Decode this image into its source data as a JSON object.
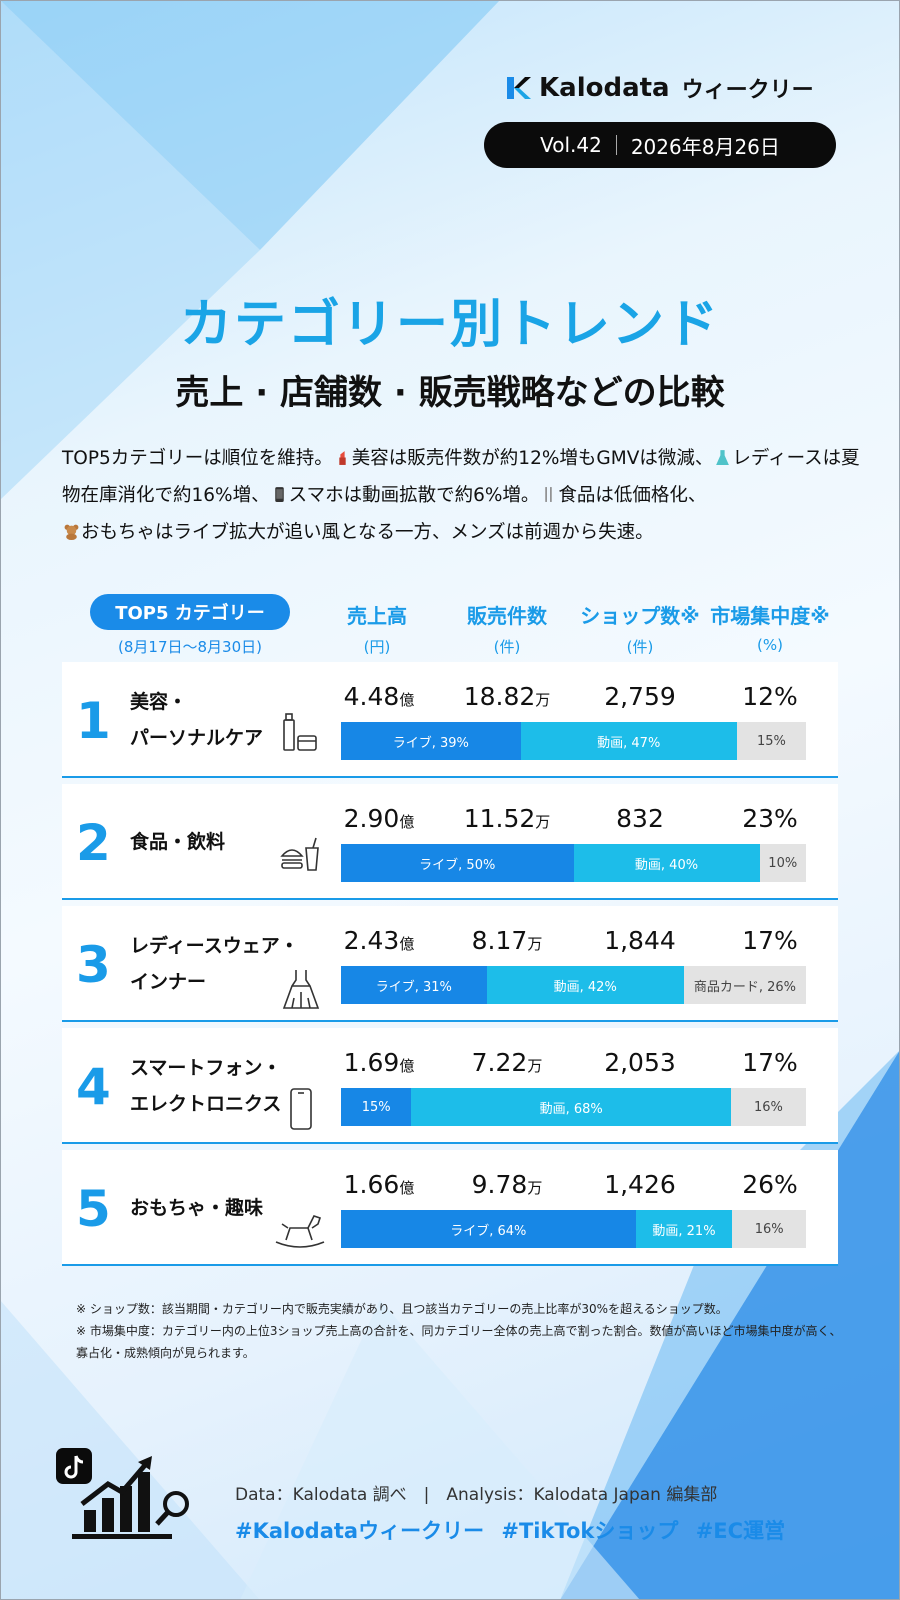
{
  "header": {
    "brand_name": "Kalodata",
    "brand_sub": "ウィークリー",
    "volume": "Vol.42",
    "date": "2026年8月26日",
    "accent_color": "#1aa4e6"
  },
  "title": "カテゴリー別トレンド",
  "subtitle": "売上 · 店舗数 · 販売戦略などの比較",
  "summary": {
    "s1": "TOP5カテゴリーは順位を維持。",
    "s2": "美容は販売件数が約12%増もGMVは微減、",
    "s3": "レディースは夏物在庫消化で約16%増、",
    "s4": "スマホは動画拡散で約6%増。",
    "s5": "食品は低価格化、",
    "s6": "おもちゃはライブ拡大が追い風となる一方、メンズは前週から失速。",
    "icons": [
      "lipstick-icon",
      "dress-icon",
      "smartphone-icon",
      "cutlery-icon",
      "teddy-bear-icon"
    ]
  },
  "table": {
    "tab_label": "TOP5 カテゴリー",
    "period": "(8月17日～8月30日)",
    "columns": [
      {
        "label": "売上高",
        "unit": "(円)"
      },
      {
        "label": "販売件数",
        "unit": "(件)"
      },
      {
        "label": "ショップ数※",
        "unit": "(件)"
      },
      {
        "label": "市場集中度※",
        "unit": "(%)"
      }
    ],
    "rows": [
      {
        "rank": "1",
        "line1": "美容・",
        "line2": "パーソナルケア",
        "icon": "cosmetics-icon",
        "sales": "4.48",
        "sales_unit": "億",
        "count": "18.82",
        "count_unit": "万",
        "shops": "2,759",
        "conc": "12%",
        "live_share": 39,
        "video_share": 47,
        "other_share": 15,
        "live_label": "ライブ, 39%",
        "video_label": "動画, 47%",
        "other_label": "15%"
      },
      {
        "rank": "2",
        "line1": "食品・飲料",
        "line2": "",
        "icon": "burger-drink-icon",
        "sales": "2.90",
        "sales_unit": "億",
        "count": "11.52",
        "count_unit": "万",
        "shops": "832",
        "conc": "23%",
        "live_share": 50,
        "video_share": 40,
        "other_share": 10,
        "live_label": "ライブ, 50%",
        "video_label": "動画, 40%",
        "other_label": "10%"
      },
      {
        "rank": "3",
        "line1": "レディースウェア・",
        "line2": "インナー",
        "icon": "dress-icon",
        "sales": "2.43",
        "sales_unit": "億",
        "count": "8.17",
        "count_unit": "万",
        "shops": "1,844",
        "conc": "17%",
        "live_share": 31,
        "video_share": 42,
        "other_share": 26,
        "live_label": "ライブ, 31%",
        "video_label": "動画, 42%",
        "other_label": "商品カード, 26%"
      },
      {
        "rank": "4",
        "line1": "スマートフォン・",
        "line2": "エレクトロニクス",
        "icon": "smartphone-icon",
        "sales": "1.69",
        "sales_unit": "億",
        "count": "7.22",
        "count_unit": "万",
        "shops": "2,053",
        "conc": "17%",
        "live_share": 15,
        "video_share": 68,
        "other_share": 16,
        "live_label": "15%",
        "video_label": "動画, 68%",
        "other_label": "16%"
      },
      {
        "rank": "5",
        "line1": "おもちゃ・趣味",
        "line2": "",
        "icon": "rocking-horse-icon",
        "sales": "1.66",
        "sales_unit": "億",
        "count": "9.78",
        "count_unit": "万",
        "shops": "1,426",
        "conc": "26%",
        "live_share": 64,
        "video_share": 21,
        "other_share": 16,
        "live_label": "ライブ, 64%",
        "video_label": "動画, 21%",
        "other_label": "16%"
      }
    ]
  },
  "notes": {
    "n1": "※ ショップ数：該当期間・カテゴリー内で販売実績があり、且つ該当カテゴリーの売上比率が30%を超えるショップ数。",
    "n2": "※ 市場集中度：カテゴリー内の上位3ショップ売上高の合計を、同カテゴリー全体の売上高で割った割合。数値が高いほど市場集中度が高く、",
    "n3": "寡占化・成熟傾向が見られます。"
  },
  "footer": {
    "credit": "Data：Kalodata 調べ　|　Analysis：Kalodata Japan 編集部",
    "tags": "#Kalodataウィークリー #TikTokショップ #EC運営",
    "icon": "growth-chart-magnifier-icon"
  }
}
